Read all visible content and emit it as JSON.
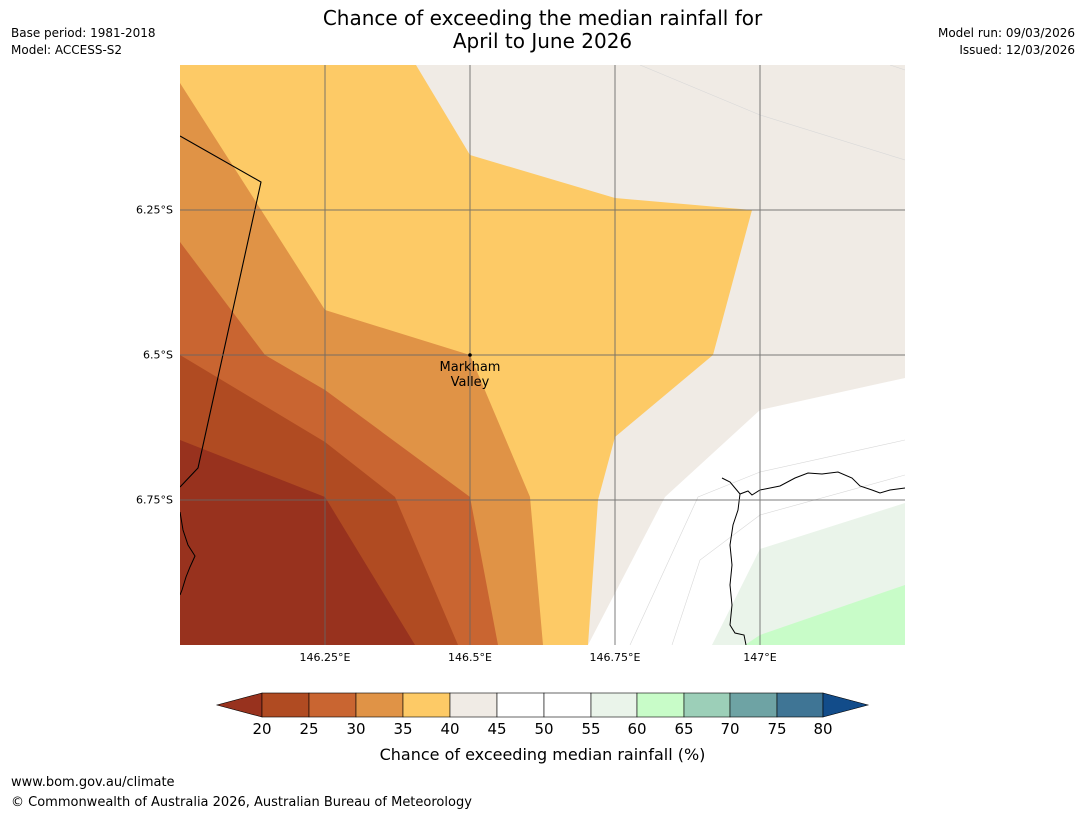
{
  "header": {
    "title_line1": "Chance of exceeding the median rainfall for",
    "title_line2": "April to June 2026",
    "base_period": "Base period: 1981-2018",
    "model": "Model: ACCESS-S2",
    "model_run": "Model run: 09/03/2026",
    "issued": "Issued: 12/03/2026"
  },
  "map": {
    "latitude_labels": [
      "6.25°S",
      "6.5°S",
      "6.75°S"
    ],
    "longitude_labels": [
      "146.25°E",
      "146.5°E",
      "146.75°E",
      "147°E"
    ],
    "place": {
      "name_line1": "Markham",
      "name_line2": "Valley",
      "lat": -6.5,
      "lon": 146.5
    }
  },
  "colorbar": {
    "ticks": [
      "20",
      "25",
      "30",
      "35",
      "40",
      "45",
      "50",
      "55",
      "60",
      "65",
      "70",
      "75",
      "80"
    ],
    "colors": {
      "below20": "#98321e",
      "20-25": "#b04b22",
      "25-30": "#c96531",
      "30-35": "#e09346",
      "35-40": "#fdca66",
      "40-45": "#f0ebe5",
      "45-50": "#ffffff",
      "50-55": "#ffffff",
      "55-60": "#eaf4ea",
      "60-65": "#c8fcc8",
      "65-70": "#9ccfb8",
      "70-75": "#6ea3a4",
      "75-80": "#3f7595",
      "above80": "#124c8a"
    },
    "label": "Chance of exceeding median rainfall (%)"
  },
  "footer": {
    "url": "www.bom.gov.au/climate",
    "copyright": "© Commonwealth of Australia 2026, Australian Bureau of Meteorology"
  }
}
